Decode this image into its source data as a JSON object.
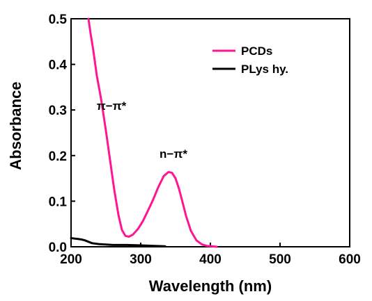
{
  "chart_data": {
    "type": "line",
    "xlabel": "Wavelength (nm)",
    "ylabel": "Absorbance",
    "xlim": [
      200,
      600
    ],
    "ylim": [
      0.0,
      0.5
    ],
    "xticks": [
      200,
      300,
      400,
      500,
      600
    ],
    "yticks": [
      0.0,
      0.1,
      0.2,
      0.3,
      0.4,
      0.5
    ],
    "xtick_labels": [
      "200",
      "300",
      "400",
      "500",
      "600"
    ],
    "ytick_labels": [
      "0.0",
      "0.1",
      "0.2",
      "0.3",
      "0.4",
      "0.5"
    ],
    "grid": false,
    "legend_position": "top-right",
    "series": [
      {
        "name": "PCDs",
        "color": "#ff1493",
        "x": [
          225,
          228,
          232,
          237,
          243,
          250,
          256,
          262,
          268,
          273,
          278,
          283,
          289,
          296,
          303,
          310,
          318,
          325,
          333,
          340,
          345,
          350,
          355,
          360,
          365,
          372,
          380,
          388,
          395,
          402,
          409
        ],
        "y": [
          0.5,
          0.468,
          0.43,
          0.375,
          0.325,
          0.255,
          0.19,
          0.125,
          0.07,
          0.037,
          0.024,
          0.022,
          0.027,
          0.039,
          0.056,
          0.078,
          0.104,
          0.13,
          0.155,
          0.164,
          0.162,
          0.15,
          0.127,
          0.098,
          0.068,
          0.035,
          0.014,
          0.005,
          0.002,
          0.001,
          0.0
        ]
      },
      {
        "name": "PLys hy.",
        "color": "#000000",
        "x": [
          200,
          205,
          210,
          215,
          220,
          225,
          230,
          240,
          250,
          260,
          280,
          300,
          320,
          335
        ],
        "y": [
          0.019,
          0.018,
          0.017,
          0.016,
          0.014,
          0.011,
          0.008,
          0.006,
          0.005,
          0.004,
          0.004,
          0.003,
          0.002,
          0.001
        ]
      }
    ],
    "annotations": [
      {
        "text": "π−π*",
        "x": 258,
        "y": 0.3
      },
      {
        "text": "n−π*",
        "x": 347,
        "y": 0.195
      }
    ]
  }
}
